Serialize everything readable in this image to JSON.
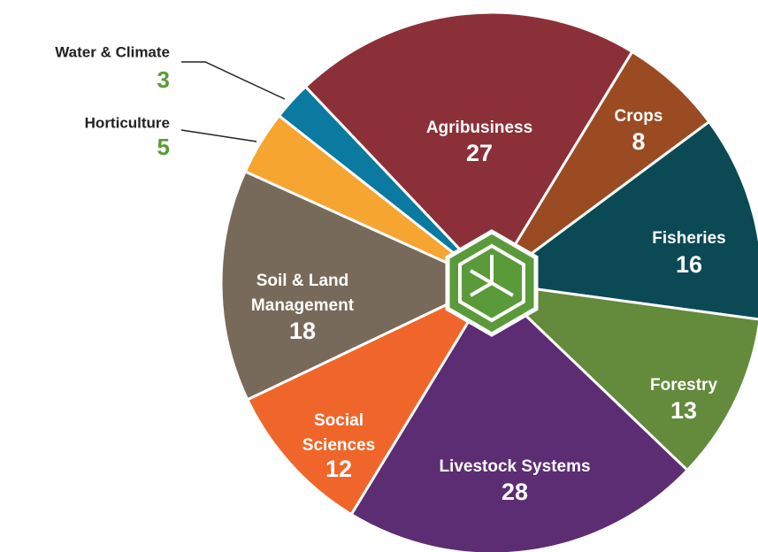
{
  "chart_data": {
    "type": "pie",
    "categories": [
      "Agribusiness",
      "Crops",
      "Fisheries",
      "Forestry",
      "Livestock Systems",
      "Social Sciences",
      "Soil & Land Management",
      "Horticulture",
      "Water & Climate"
    ],
    "values": [
      27,
      8,
      16,
      13,
      28,
      12,
      18,
      5,
      3
    ],
    "colors": [
      "#8b3038",
      "#9a4b22",
      "#0b4a55",
      "#648a3c",
      "#5c2d73",
      "#f0662a",
      "#786a5a",
      "#f6a531",
      "#0a7aa0"
    ]
  }
}
